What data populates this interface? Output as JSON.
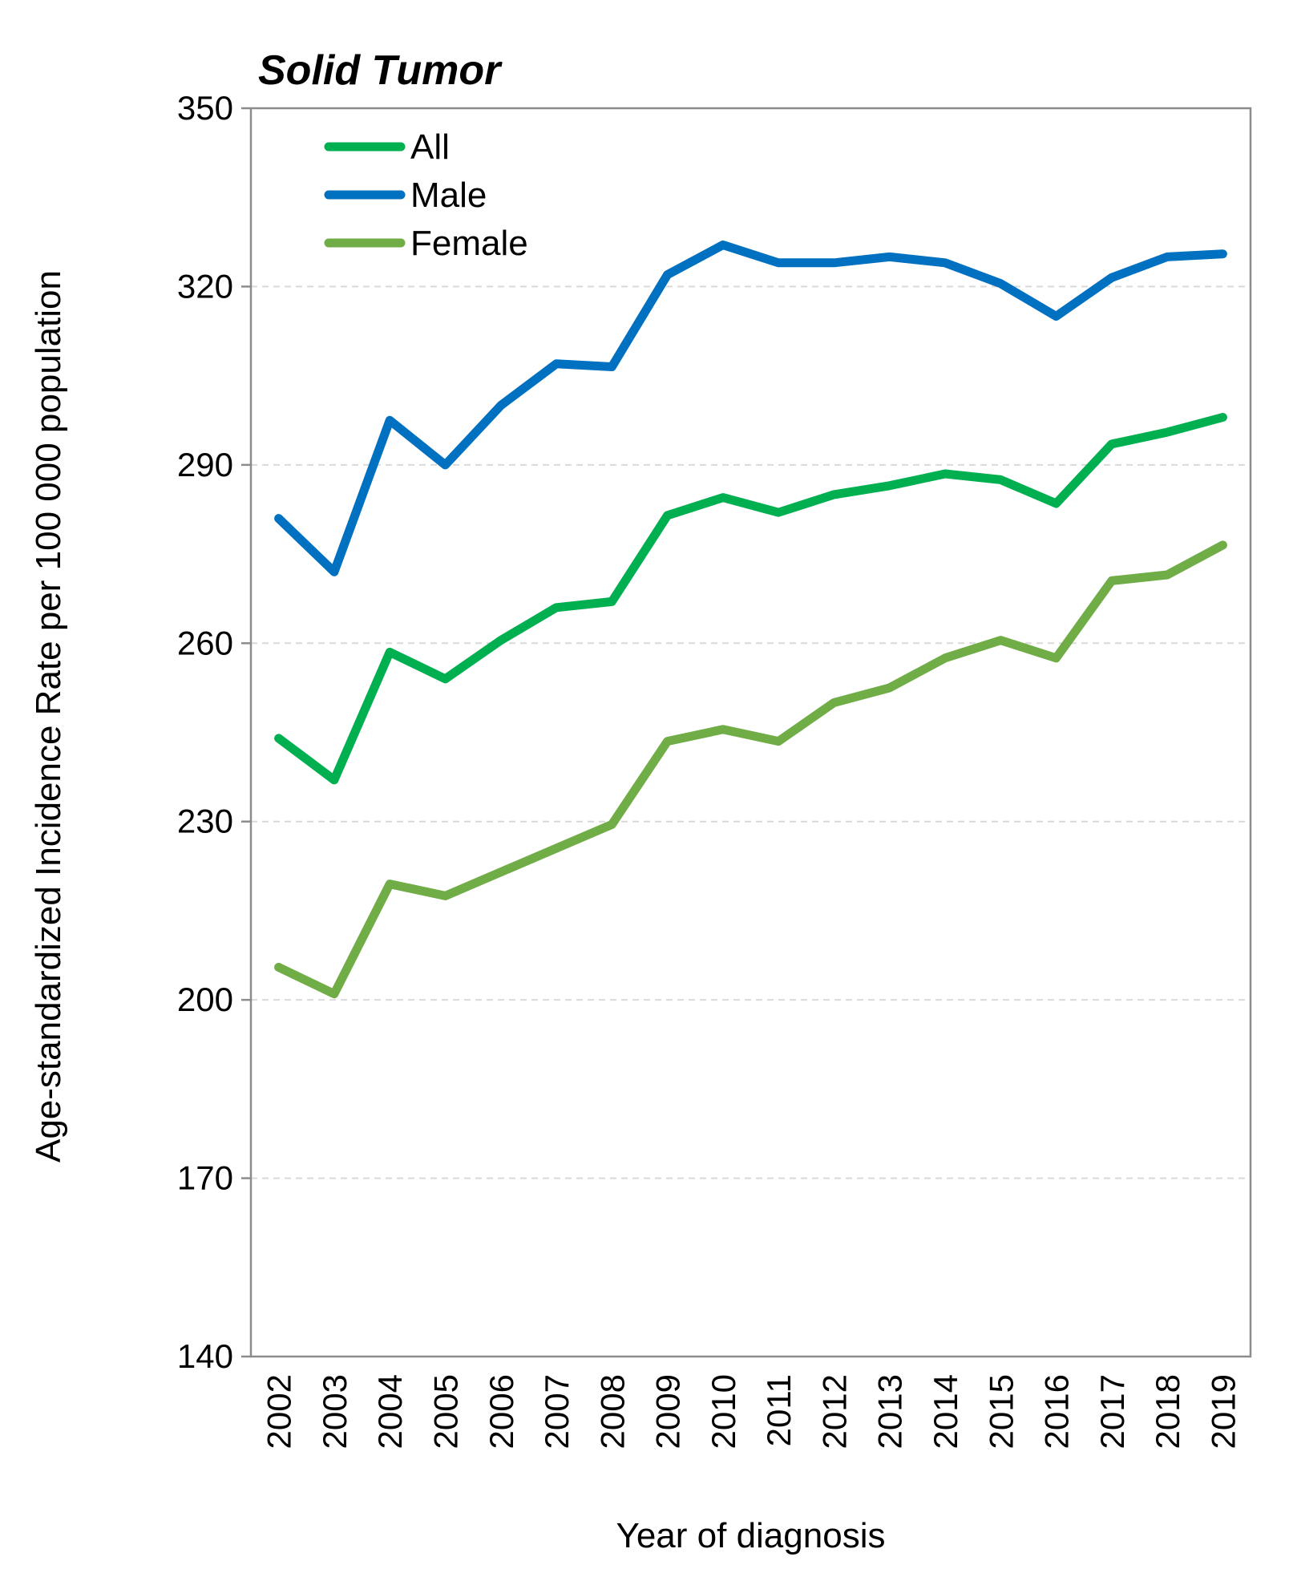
{
  "chart_data": {
    "type": "line",
    "title": "Solid Tumor",
    "xlabel": "Year of diagnosis",
    "ylabel": "Age-standardized Incidence Rate per 100 000 population",
    "ylim": [
      140,
      350
    ],
    "yticks": [
      140,
      170,
      200,
      230,
      260,
      290,
      320,
      350
    ],
    "grid": true,
    "legend_position": "top-left",
    "x": [
      "2002",
      "2003",
      "2004",
      "2005",
      "2006",
      "2007",
      "2008",
      "2009",
      "2010",
      "2011",
      "2012",
      "2013",
      "2014",
      "2015",
      "2016",
      "2017",
      "2018",
      "2019"
    ],
    "series": [
      {
        "name": "All",
        "color": "#00b050",
        "values": [
          244,
          237,
          258.5,
          254,
          260.5,
          266,
          267,
          281.5,
          284.5,
          282,
          285,
          286.5,
          288.5,
          287.5,
          283.5,
          293.5,
          295.5,
          298
        ]
      },
      {
        "name": "Male",
        "color": "#0070c0",
        "values": [
          281,
          272,
          297.5,
          290,
          300,
          307,
          306.5,
          322,
          327,
          324,
          324,
          325,
          324,
          320.5,
          315,
          321.5,
          325,
          325.5
        ]
      },
      {
        "name": "Female",
        "color": "#70ad47",
        "values": [
          205.5,
          201,
          219.5,
          217.5,
          221.5,
          225.5,
          229.5,
          243.5,
          245.5,
          243.5,
          250,
          252.5,
          257.5,
          260.5,
          257.5,
          270.5,
          271.5,
          276.5
        ]
      }
    ]
  }
}
